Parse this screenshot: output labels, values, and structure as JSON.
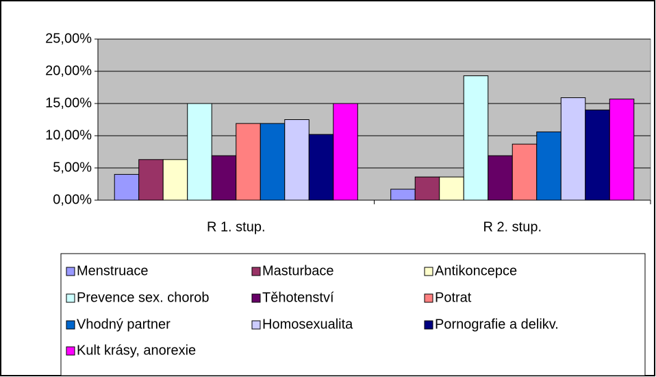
{
  "chart_data": {
    "type": "bar",
    "categories": [
      "R 1. stup.",
      "R 2. stup."
    ],
    "series": [
      {
        "name": "Menstruace",
        "color": "#9999ff",
        "values": [
          4.0,
          1.7
        ]
      },
      {
        "name": "Masturbace",
        "color": "#993366",
        "values": [
          6.3,
          3.6
        ]
      },
      {
        "name": "Antikoncepce",
        "color": "#ffffcc",
        "values": [
          6.3,
          3.6
        ]
      },
      {
        "name": "Prevence sex. chorob",
        "color": "#ccffff",
        "values": [
          15.0,
          19.3
        ]
      },
      {
        "name": "Těhotenství",
        "color": "#660066",
        "values": [
          6.9,
          6.9
        ]
      },
      {
        "name": "Potrat",
        "color": "#ff8080",
        "values": [
          11.9,
          8.7
        ]
      },
      {
        "name": "Vhodný partner",
        "color": "#0066cc",
        "values": [
          11.9,
          10.6
        ]
      },
      {
        "name": "Homosexualita",
        "color": "#ccccff",
        "values": [
          12.5,
          15.9
        ]
      },
      {
        "name": "Pornografie a delikv.",
        "color": "#000080",
        "values": [
          10.2,
          14.0
        ]
      },
      {
        "name": "Kult krásy, anorexie",
        "color": "#ff00ff",
        "values": [
          15.0,
          15.7
        ]
      }
    ],
    "ylim": [
      0,
      25
    ],
    "yticks": [
      {
        "value": 0,
        "label": "0,00%"
      },
      {
        "value": 5,
        "label": "5,00%"
      },
      {
        "value": 10,
        "label": "10,00%"
      },
      {
        "value": 15,
        "label": "15,00%"
      },
      {
        "value": 20,
        "label": "20,00%"
      },
      {
        "value": 25,
        "label": "25,00%"
      }
    ],
    "grid": true,
    "legend": "bottom"
  }
}
